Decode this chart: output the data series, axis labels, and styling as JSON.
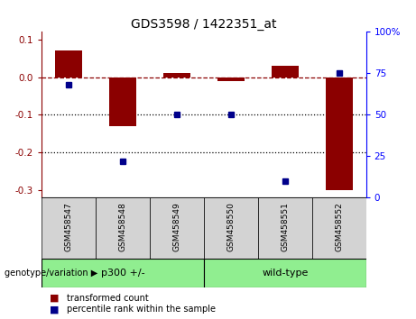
{
  "title": "GDS3598 / 1422351_at",
  "samples": [
    "GSM458547",
    "GSM458548",
    "GSM458549",
    "GSM458550",
    "GSM458551",
    "GSM458552"
  ],
  "red_bars": [
    0.07,
    -0.13,
    0.01,
    -0.01,
    0.03,
    -0.3
  ],
  "blue_dots": [
    68,
    22,
    50,
    50,
    10,
    75
  ],
  "ylim_left": [
    -0.32,
    0.12
  ],
  "ylim_right": [
    0,
    100
  ],
  "yticks_left": [
    0.1,
    0.0,
    -0.1,
    -0.2,
    -0.3
  ],
  "yticks_right": [
    100,
    75,
    50,
    25,
    0
  ],
  "groups": [
    {
      "label": "p300 +/-",
      "color": "#90EE90"
    },
    {
      "label": "wild-type",
      "color": "#90EE90"
    }
  ],
  "group_label": "genotype/variation",
  "red_color": "#8B0000",
  "blue_color": "#00008B",
  "bar_width": 0.5,
  "hline_y": 0.0,
  "dotted_lines": [
    -0.1,
    -0.2
  ],
  "legend_red": "transformed count",
  "legend_blue": "percentile rank within the sample",
  "title_fontsize": 10,
  "tick_fontsize": 7.5,
  "label_fontsize": 6.5,
  "group_fontsize": 8,
  "legend_fontsize": 7,
  "gray_bg": "#d3d3d3",
  "green_bg": "#90EE90"
}
